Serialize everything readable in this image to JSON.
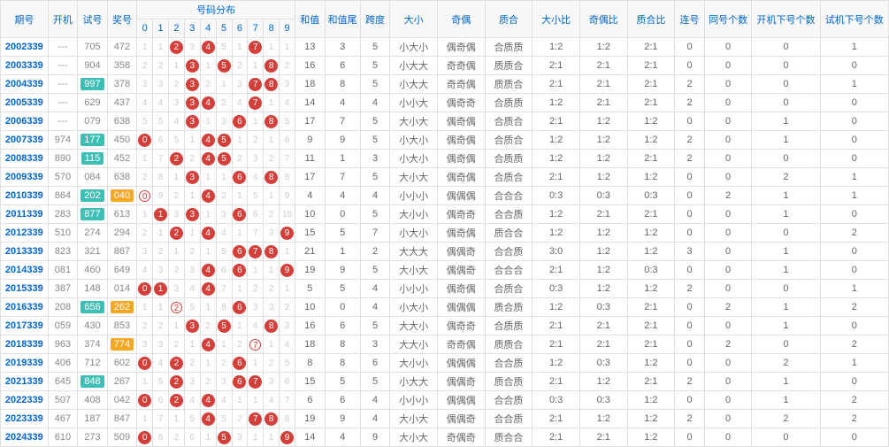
{
  "headers": {
    "period": "期号",
    "open": "开机",
    "test": "试号",
    "prize": "奖号",
    "dist": "号码分布",
    "digits": [
      "0",
      "1",
      "2",
      "3",
      "4",
      "5",
      "6",
      "7",
      "8",
      "9"
    ],
    "sum": "和值",
    "sumTail": "和值尾",
    "span": "跨度",
    "bigSmall": "大小",
    "oddEven": "奇偶",
    "prime": "质合",
    "bsRatio": "大小比",
    "oeRatio": "奇偶比",
    "pcRatio": "质合比",
    "consec": "连号",
    "same": "同号个数",
    "openNext": "开机下号个数",
    "testNext": "试机下号个数"
  },
  "colors": {
    "ballRed": "#d43f3a",
    "teal": "#3ebfb5",
    "orange": "#f5a623",
    "headerText": "#0066cc",
    "border": "#e0e0e0"
  },
  "rows": [
    {
      "period": "2002339",
      "open": "---",
      "test": "705",
      "prize": "472",
      "dist": [
        "1",
        "1",
        "R2",
        "3",
        "R4",
        "5",
        "1",
        "R7",
        "1",
        "1"
      ],
      "sum": 13,
      "sumTail": 3,
      "span": 5,
      "bs": "小大小",
      "oe": "偶奇偶",
      "pc": "合质质",
      "bsR": "1:2",
      "oeR": "1:2",
      "pcR": "2:1",
      "consec": 0,
      "same": 0,
      "openN": 0,
      "testN": 1
    },
    {
      "period": "2003339",
      "open": "---",
      "test": "904",
      "prize": "358",
      "dist": [
        "2",
        "2",
        "1",
        "R3",
        "1",
        "R5",
        "2",
        "1",
        "R8",
        "2"
      ],
      "sum": 16,
      "sumTail": 6,
      "span": 5,
      "bs": "小大大",
      "oe": "奇奇偶",
      "pc": "质质合",
      "bsR": "2:1",
      "oeR": "2:1",
      "pcR": "2:1",
      "consec": 0,
      "same": 0,
      "openN": 0,
      "testN": 0
    },
    {
      "period": "2004339",
      "open": "---",
      "test": "997",
      "testHL": "teal",
      "prize": "378",
      "dist": [
        "3",
        "3",
        "2",
        "R3",
        "2",
        "1",
        "3",
        "R7",
        "R8",
        "3"
      ],
      "sum": 18,
      "sumTail": 8,
      "span": 5,
      "bs": "小大大",
      "oe": "奇奇偶",
      "pc": "质质合",
      "bsR": "2:1",
      "oeR": "2:1",
      "pcR": "2:1",
      "consec": 2,
      "same": 0,
      "openN": 0,
      "testN": 1
    },
    {
      "period": "2005339",
      "open": "---",
      "test": "629",
      "prize": "437",
      "dist": [
        "4",
        "4",
        "3",
        "R3",
        "R4",
        "2",
        "4",
        "R7",
        "1",
        "4"
      ],
      "sum": 14,
      "sumTail": 4,
      "span": 4,
      "bs": "小小大",
      "oe": "偶奇奇",
      "pc": "合质质",
      "bsR": "1:2",
      "oeR": "2:1",
      "pcR": "2:1",
      "consec": 2,
      "same": 0,
      "openN": 0,
      "testN": 0
    },
    {
      "period": "2006339",
      "open": "---",
      "test": "079",
      "prize": "638",
      "dist": [
        "5",
        "5",
        "4",
        "R3",
        "1",
        "3",
        "R6",
        "1",
        "R8",
        "5"
      ],
      "sum": 17,
      "sumTail": 7,
      "span": 5,
      "bs": "大小大",
      "oe": "偶奇偶",
      "pc": "合质合",
      "bsR": "2:1",
      "oeR": "1:2",
      "pcR": "1:2",
      "consec": 0,
      "same": 0,
      "openN": 1,
      "testN": 0,
      "sep": true
    },
    {
      "period": "2007339",
      "open": "974",
      "test": "177",
      "testHL": "teal",
      "prize": "450",
      "dist": [
        "R0",
        "6",
        "5",
        "1",
        "R4",
        "R5",
        "1",
        "2",
        "1",
        "6"
      ],
      "sum": 9,
      "sumTail": 9,
      "span": 5,
      "bs": "小大小",
      "oe": "偶奇偶",
      "pc": "合质合",
      "bsR": "1:2",
      "oeR": "1:2",
      "pcR": "1:2",
      "consec": 2,
      "same": 0,
      "openN": 1,
      "testN": 0
    },
    {
      "period": "2008339",
      "open": "890",
      "test": "115",
      "testHL": "teal",
      "prize": "452",
      "dist": [
        "1",
        "7",
        "R2",
        "2",
        "R4",
        "R5",
        "2",
        "3",
        "2",
        "7"
      ],
      "sum": 11,
      "sumTail": 1,
      "span": 3,
      "bs": "小大小",
      "oe": "偶奇偶",
      "pc": "合质质",
      "bsR": "1:2",
      "oeR": "1:2",
      "pcR": "2:1",
      "consec": 2,
      "same": 0,
      "openN": 0,
      "testN": 0
    },
    {
      "period": "2009339",
      "open": "570",
      "test": "084",
      "prize": "638",
      "dist": [
        "2",
        "8",
        "1",
        "R3",
        "1",
        "1",
        "R6",
        "4",
        "R8",
        "8"
      ],
      "sum": 17,
      "sumTail": 7,
      "span": 5,
      "bs": "大小大",
      "oe": "偶奇偶",
      "pc": "合质合",
      "bsR": "2:1",
      "oeR": "1:2",
      "pcR": "1:2",
      "consec": 0,
      "same": 0,
      "openN": 2,
      "testN": 1
    },
    {
      "period": "2010339",
      "open": "864",
      "test": "202",
      "testHL": "teal",
      "prize": "040",
      "prizeHL": "orange",
      "dist": [
        "H0",
        "9",
        "2",
        "1",
        "R4",
        "2",
        "1",
        "5",
        "1",
        "9"
      ],
      "sum": 4,
      "sumTail": 4,
      "span": 4,
      "bs": "小小小",
      "oe": "偶偶偶",
      "pc": "合合合",
      "bsR": "0:3",
      "oeR": "0:3",
      "pcR": "0:3",
      "consec": 0,
      "same": 2,
      "openN": 1,
      "testN": 1
    },
    {
      "period": "2011339",
      "open": "283",
      "test": "877",
      "testHL": "teal",
      "prize": "613",
      "dist": [
        "1",
        "R1",
        "3",
        "R3",
        "1",
        "3",
        "R6",
        "6",
        "2",
        "10"
      ],
      "sum": 10,
      "sumTail": 0,
      "span": 5,
      "bs": "大小小",
      "oe": "偶奇奇",
      "pc": "合合质",
      "bsR": "1:2",
      "oeR": "2:1",
      "pcR": "2:1",
      "consec": 0,
      "same": 0,
      "openN": 1,
      "testN": 0,
      "sep": true
    },
    {
      "period": "2012339",
      "open": "510",
      "test": "274",
      "prize": "294",
      "dist": [
        "2",
        "1",
        "R2",
        "1",
        "R4",
        "4",
        "1",
        "7",
        "3",
        "R9"
      ],
      "sum": 15,
      "sumTail": 5,
      "span": 7,
      "bs": "小大小",
      "oe": "偶奇偶",
      "pc": "质合合",
      "bsR": "1:2",
      "oeR": "1:2",
      "pcR": "1:2",
      "consec": 0,
      "same": 0,
      "openN": 0,
      "testN": 2
    },
    {
      "period": "2013339",
      "open": "823",
      "test": "321",
      "prize": "867",
      "dist": [
        "3",
        "2",
        "1",
        "2",
        "1",
        "5",
        "R6",
        "R7",
        "R8",
        "1"
      ],
      "sum": 21,
      "sumTail": 1,
      "span": 2,
      "bs": "大大大",
      "oe": "偶偶奇",
      "pc": "合合质",
      "bsR": "3:0",
      "oeR": "1:2",
      "pcR": "1:2",
      "consec": 3,
      "same": 0,
      "openN": 1,
      "testN": 0
    },
    {
      "period": "2014339",
      "open": "081",
      "test": "460",
      "prize": "649",
      "dist": [
        "4",
        "3",
        "2",
        "3",
        "R4",
        "6",
        "R6",
        "1",
        "1",
        "R9"
      ],
      "sum": 19,
      "sumTail": 9,
      "span": 5,
      "bs": "大小大",
      "oe": "偶偶奇",
      "pc": "合合合",
      "bsR": "2:1",
      "oeR": "1:2",
      "pcR": "0:3",
      "consec": 0,
      "same": 0,
      "openN": 1,
      "testN": 0
    },
    {
      "period": "2015339",
      "open": "387",
      "test": "148",
      "prize": "014",
      "dist": [
        "R0",
        "R1",
        "3",
        "4",
        "R4",
        "7",
        "1",
        "2",
        "2",
        "1"
      ],
      "sum": 5,
      "sumTail": 5,
      "span": 4,
      "bs": "小小小",
      "oe": "偶奇偶",
      "pc": "合质合",
      "bsR": "0:3",
      "oeR": "1:2",
      "pcR": "1:2",
      "consec": 2,
      "same": 0,
      "openN": 0,
      "testN": 1
    },
    {
      "period": "2016339",
      "open": "208",
      "test": "656",
      "testHL": "teal",
      "prize": "262",
      "prizeHL": "orange",
      "dist": [
        "1",
        "1",
        "H2",
        "5",
        "1",
        "8",
        "R6",
        "3",
        "3",
        "2"
      ],
      "sum": 10,
      "sumTail": 0,
      "span": 4,
      "bs": "小大小",
      "oe": "偶偶偶",
      "pc": "质合质",
      "bsR": "1:2",
      "oeR": "0:3",
      "pcR": "2:1",
      "consec": 0,
      "same": 2,
      "openN": 1,
      "testN": 2,
      "sep": true
    },
    {
      "period": "2017339",
      "open": "059",
      "test": "430",
      "prize": "853",
      "dist": [
        "2",
        "2",
        "1",
        "R3",
        "2",
        "R5",
        "1",
        "4",
        "R8",
        "3"
      ],
      "sum": 16,
      "sumTail": 6,
      "span": 5,
      "bs": "大大小",
      "oe": "偶奇奇",
      "pc": "合质质",
      "bsR": "2:1",
      "oeR": "2:1",
      "pcR": "2:1",
      "consec": 0,
      "same": 0,
      "openN": 1,
      "testN": 0
    },
    {
      "period": "2018339",
      "open": "963",
      "test": "374",
      "prize": "774",
      "prizeHL": "orange",
      "dist": [
        "3",
        "3",
        "2",
        "1",
        "R4",
        "1",
        "2",
        "H7",
        "1",
        "4"
      ],
      "sum": 18,
      "sumTail": 8,
      "span": 3,
      "bs": "大大小",
      "oe": "奇奇偶",
      "pc": "质质合",
      "bsR": "2:1",
      "oeR": "2:1",
      "pcR": "2:1",
      "consec": 0,
      "same": 2,
      "openN": 0,
      "testN": 2
    },
    {
      "period": "2019339",
      "open": "406",
      "test": "712",
      "prize": "602",
      "dist": [
        "R0",
        "4",
        "R2",
        "2",
        "1",
        "2",
        "R6",
        "1",
        "2",
        "5"
      ],
      "sum": 8,
      "sumTail": 8,
      "span": 6,
      "bs": "大小小",
      "oe": "偶偶偶",
      "pc": "合合质",
      "bsR": "1:2",
      "oeR": "0:3",
      "pcR": "1:2",
      "consec": 0,
      "same": 0,
      "openN": 2,
      "testN": 1
    },
    {
      "period": "2021339",
      "open": "645",
      "test": "848",
      "testHL": "teal",
      "prize": "267",
      "dist": [
        "1",
        "5",
        "R2",
        "3",
        "2",
        "3",
        "R6",
        "R7",
        "3",
        "6"
      ],
      "sum": 15,
      "sumTail": 5,
      "span": 5,
      "bs": "小大大",
      "oe": "偶偶奇",
      "pc": "质合质",
      "bsR": "2:1",
      "oeR": "1:2",
      "pcR": "2:1",
      "consec": 2,
      "same": 0,
      "openN": 1,
      "testN": 0
    },
    {
      "period": "2022339",
      "open": "507",
      "test": "408",
      "prize": "042",
      "dist": [
        "R0",
        "6",
        "R2",
        "4",
        "R4",
        "4",
        "1",
        "1",
        "4",
        "7"
      ],
      "sum": 6,
      "sumTail": 6,
      "span": 4,
      "bs": "小小小",
      "oe": "偶偶偶",
      "pc": "合合质",
      "bsR": "0:3",
      "oeR": "0:3",
      "pcR": "1:2",
      "consec": 0,
      "same": 0,
      "openN": 1,
      "testN": 2,
      "sep": true
    },
    {
      "period": "2023339",
      "open": "467",
      "test": "187",
      "prize": "847",
      "dist": [
        "1",
        "7",
        "1",
        "5",
        "R4",
        "5",
        "2",
        "R7",
        "R8",
        "8"
      ],
      "sum": 19,
      "sumTail": 9,
      "span": 4,
      "bs": "大小大",
      "oe": "偶偶奇",
      "pc": "合合质",
      "bsR": "2:1",
      "oeR": "1:2",
      "pcR": "1:2",
      "consec": 2,
      "same": 0,
      "openN": 2,
      "testN": 2
    },
    {
      "period": "2024339",
      "open": "610",
      "test": "273",
      "prize": "509",
      "dist": [
        "R0",
        "8",
        "2",
        "6",
        "1",
        "R5",
        "3",
        "1",
        "1",
        "R9"
      ],
      "sum": 14,
      "sumTail": 4,
      "span": 9,
      "bs": "大小大",
      "oe": "奇偶奇",
      "pc": "质合合",
      "bsR": "2:1",
      "oeR": "2:1",
      "pcR": "1:2",
      "consec": 0,
      "same": 0,
      "openN": 0,
      "testN": 0
    }
  ]
}
